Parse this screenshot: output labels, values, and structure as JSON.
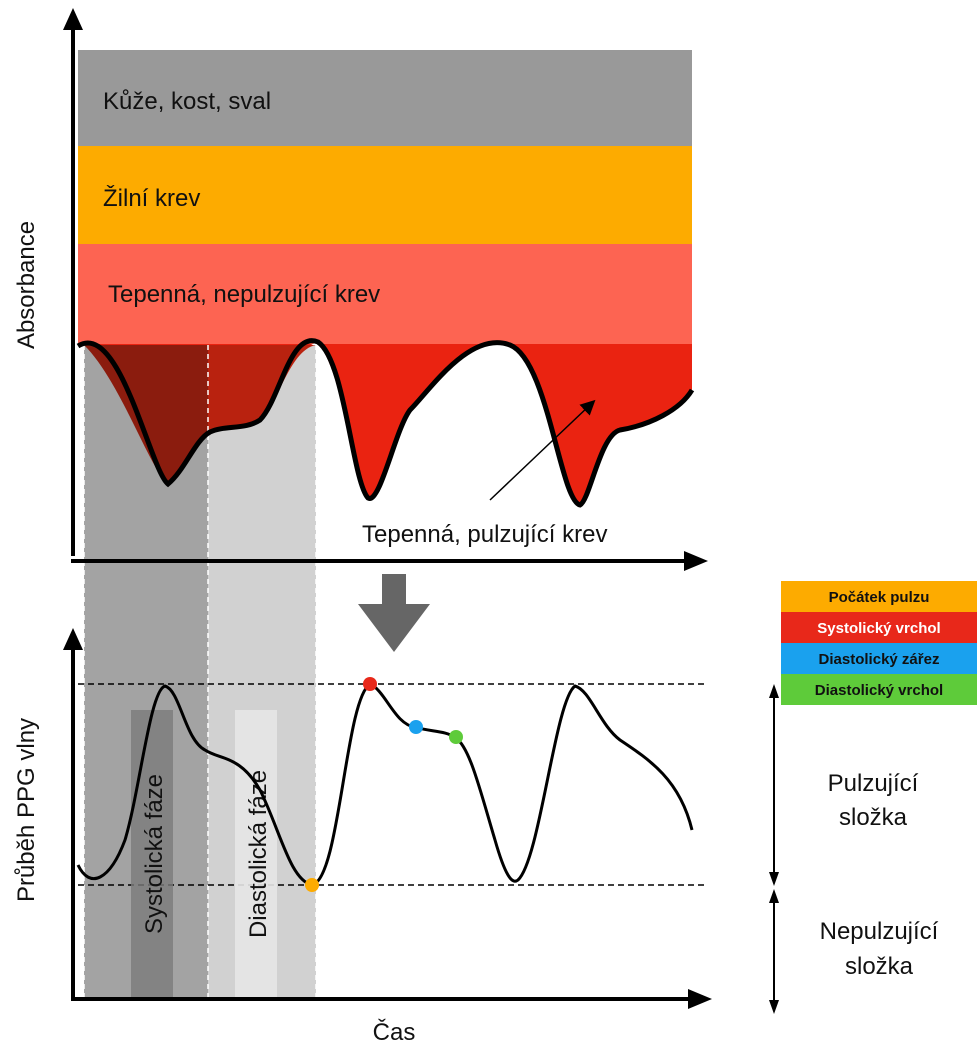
{
  "top_panel": {
    "y_axis_label": "Absorbance",
    "layers": [
      {
        "name": "skin",
        "label": "Kůže, kost, sval",
        "color": "#999999"
      },
      {
        "name": "venous",
        "label": "Žilní krev",
        "color": "#fdab00"
      },
      {
        "name": "arterial-nonpulsing",
        "label": "Tepenná, nepulzující krev",
        "color": "#fd6452"
      },
      {
        "name": "arterial-pulsing",
        "label": "Tepenná, pulzující krev",
        "color": "#ea2311"
      }
    ]
  },
  "bottom_panel": {
    "y_axis_label": "Průběh PPG vlny",
    "x_axis_label": "Čas",
    "phases": {
      "systolic": "Systolická fáze",
      "diastolic": "Diastolická fáze"
    },
    "components": {
      "pulsing": [
        "Pulzující",
        "složka"
      ],
      "nonpulsing": [
        "Nepulzující",
        "složka"
      ]
    },
    "legend": [
      {
        "label": "Počátek pulzu",
        "color": "#fdab00"
      },
      {
        "label": "Systolický vrchol",
        "color": "#e8281a"
      },
      {
        "label": "Diastolický zářez",
        "color": "#1aa1ee"
      },
      {
        "label": "Diastolický vrchol",
        "color": "#5ecb3a"
      }
    ]
  }
}
